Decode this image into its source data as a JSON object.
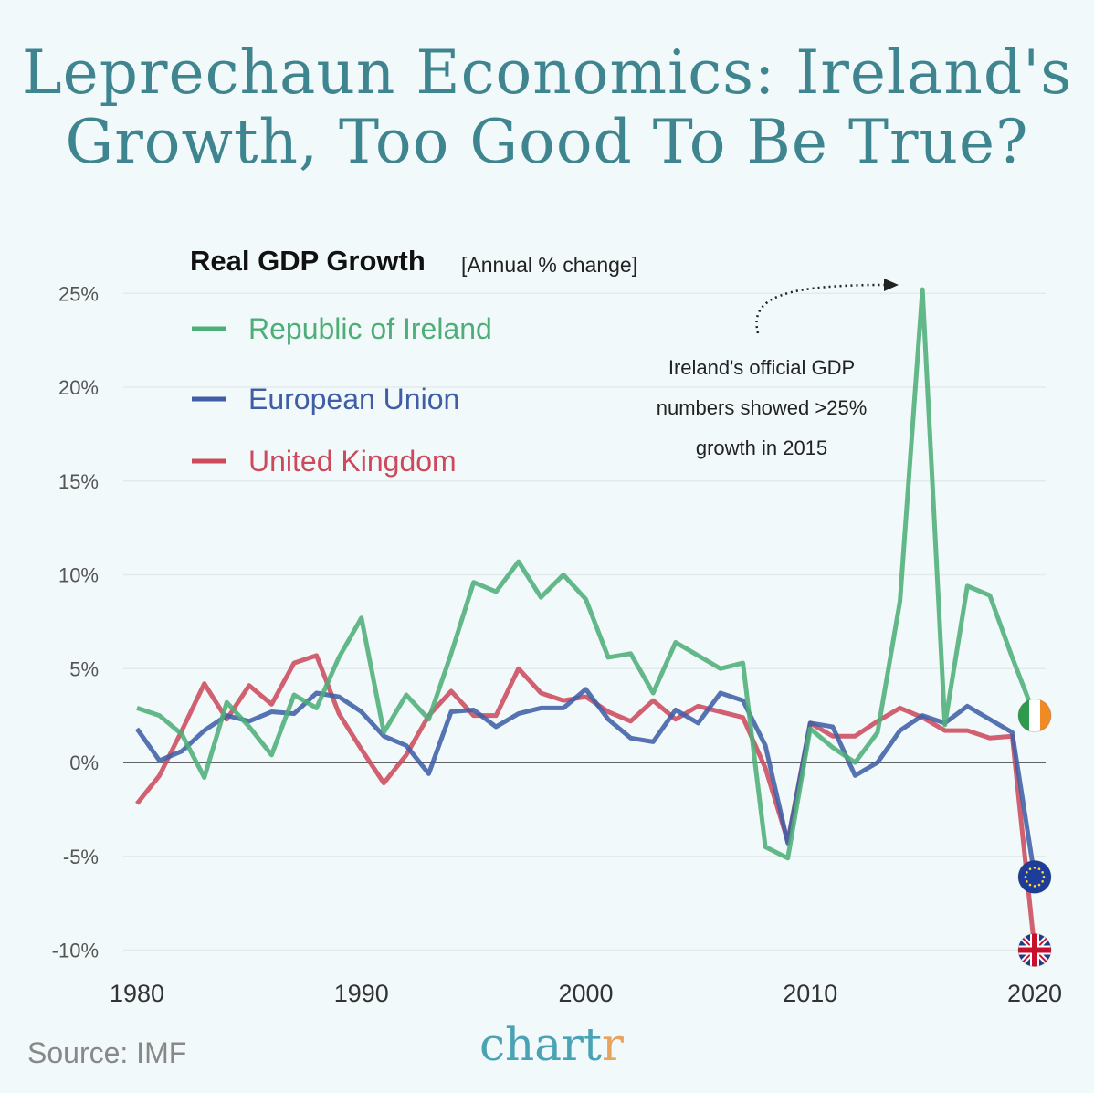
{
  "title_line1": "Leprechaun Economics: Ireland's",
  "title_line2": "Growth, Too Good To Be True?",
  "source": "Source: IMF",
  "logo": {
    "main": "chart",
    "accent": "r"
  },
  "chart_data": {
    "type": "line",
    "title": "Real GDP Growth",
    "subtitle": "[Annual % change]",
    "xlabel": "",
    "ylabel": "",
    "x": [
      1980,
      1981,
      1982,
      1983,
      1984,
      1985,
      1986,
      1987,
      1988,
      1989,
      1990,
      1991,
      1992,
      1993,
      1994,
      1995,
      1996,
      1997,
      1998,
      1999,
      2000,
      2001,
      2002,
      2003,
      2004,
      2005,
      2006,
      2007,
      2008,
      2009,
      2010,
      2011,
      2012,
      2013,
      2014,
      2015,
      2016,
      2017,
      2018,
      2019,
      2020
    ],
    "xlim": [
      1980,
      2020
    ],
    "ylim": [
      -10,
      25
    ],
    "xticks": [
      "1980",
      "1990",
      "2000",
      "2010",
      "2020"
    ],
    "xtick_values": [
      1980,
      1990,
      2000,
      2010,
      2020
    ],
    "yticks": [
      "25%",
      "20%",
      "15%",
      "10%",
      "5%",
      "0%",
      "-5%",
      "-10%"
    ],
    "ytick_values": [
      25,
      20,
      15,
      10,
      5,
      0,
      -5,
      -10
    ],
    "grid": true,
    "legend": "top-left",
    "series": [
      {
        "name": "Republic of Ireland",
        "color": "#4dae78",
        "marker": "ireland-flag",
        "values": [
          2.9,
          2.5,
          1.5,
          -0.8,
          3.2,
          1.9,
          0.4,
          3.6,
          2.9,
          5.6,
          7.7,
          1.6,
          3.6,
          2.3,
          5.8,
          9.6,
          9.1,
          10.7,
          8.8,
          10.0,
          8.7,
          5.6,
          5.8,
          3.7,
          6.4,
          5.7,
          5.0,
          5.3,
          -4.5,
          -5.1,
          1.8,
          0.8,
          0.0,
          1.6,
          8.6,
          25.2,
          2.0,
          9.4,
          8.9,
          5.6,
          2.5
        ]
      },
      {
        "name": "European Union",
        "color": "#3f5ea6",
        "marker": "eu-flag",
        "values": [
          1.8,
          0.1,
          0.6,
          1.7,
          2.5,
          2.2,
          2.7,
          2.6,
          3.7,
          3.5,
          2.7,
          1.4,
          0.9,
          -0.6,
          2.7,
          2.8,
          1.9,
          2.6,
          2.9,
          2.9,
          3.9,
          2.3,
          1.3,
          1.1,
          2.8,
          2.1,
          3.7,
          3.3,
          0.9,
          -4.3,
          2.1,
          1.9,
          -0.7,
          0.0,
          1.7,
          2.5,
          2.1,
          3.0,
          2.3,
          1.6,
          -6.1
        ]
      },
      {
        "name": "United Kingdom",
        "color": "#cc4a5c",
        "marker": "uk-flag",
        "values": [
          -2.2,
          -0.7,
          1.7,
          4.2,
          2.3,
          4.1,
          3.1,
          5.3,
          5.7,
          2.6,
          0.7,
          -1.1,
          0.4,
          2.5,
          3.8,
          2.5,
          2.5,
          5.0,
          3.7,
          3.3,
          3.5,
          2.7,
          2.2,
          3.3,
          2.3,
          3.0,
          2.7,
          2.4,
          -0.3,
          -4.2,
          2.1,
          1.4,
          1.4,
          2.2,
          2.9,
          2.4,
          1.7,
          1.7,
          1.3,
          1.4,
          -10.0
        ]
      }
    ],
    "annotations": [
      {
        "lines": [
          "Ireland's official GDP",
          "numbers showed >25%",
          "growth in 2015"
        ],
        "points_to": {
          "x": 2015,
          "y": 25.2
        }
      }
    ]
  }
}
